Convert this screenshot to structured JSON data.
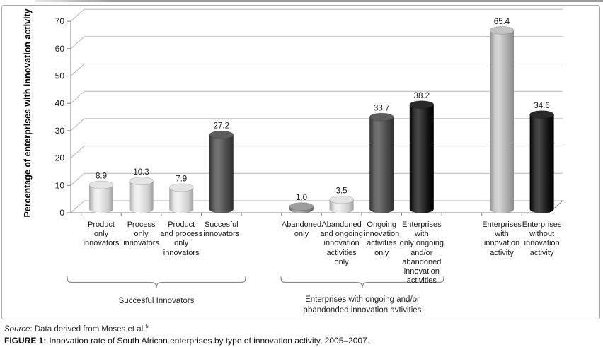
{
  "figure": {
    "y_axis_title": "Percentage of enterprises with innovation activity",
    "source_prefix": "Source",
    "source_text": ": Data derived from Moses et al.",
    "source_note_ref": "5",
    "caption_label": "FIGURE 1:",
    "caption_text": "Innovation rate of South African enterprises by type of innovation activity, 2005–2007."
  },
  "chart_data": {
    "type": "bar",
    "style": "3d-cylinder",
    "title": "",
    "xlabel": "",
    "ylabel": "Percentage of enterprises with innovation activity",
    "ylim": [
      0,
      70
    ],
    "yticks": [
      0,
      10,
      20,
      30,
      40,
      50,
      60,
      70
    ],
    "grid": true,
    "legend": "none",
    "bar_colors": {
      "light": "#d9d9d9",
      "dark": "#4f4f4f",
      "black": "#0f0f0f",
      "medium": "#8f8f8f",
      "medium_light": "#ababab"
    },
    "axis_color": "#808080",
    "gridline_color": "#b5b5b5",
    "groups": [
      {
        "brace_label": "Succesful Innovators",
        "brace_label_lines": [
          "Succesful Innovators"
        ],
        "bars": [
          {
            "label": "Product only innovators",
            "label_lines": [
              "Product",
              "only",
              "innovators"
            ],
            "value": 8.9,
            "color": "light"
          },
          {
            "label": "Process only innovators",
            "label_lines": [
              "Process",
              "only",
              "innovators"
            ],
            "value": 10.3,
            "color": "light"
          },
          {
            "label": "Product and process only innovators",
            "label_lines": [
              "Product",
              "and process",
              "only",
              "innovators"
            ],
            "value": 7.9,
            "color": "light"
          },
          {
            "label": "Succesful innovators",
            "label_lines": [
              "Succesful",
              "innovators"
            ],
            "value": 27.2,
            "color": "dark"
          }
        ]
      },
      {
        "brace_label": "Enterprises with ongoing and/or abandonded innovation avtivities",
        "brace_label_lines": [
          "Enterprises with ongoing and/or",
          "abandonded innovation avtivities"
        ],
        "bars": [
          {
            "label": "Abandoned only",
            "label_lines": [
              "Abandoned",
              "only"
            ],
            "value": 1.0,
            "color": "medium"
          },
          {
            "label": "Abandoned and ongoing innovation activities only",
            "label_lines": [
              "Abandoned",
              "and ongoing",
              "innovation",
              "activities",
              "only"
            ],
            "value": 3.5,
            "color": "light"
          },
          {
            "label": "Ongoing innovation activities only",
            "label_lines": [
              "Ongoing",
              "innovation",
              "activities",
              "only"
            ],
            "value": 33.7,
            "color": "dark"
          },
          {
            "label": "Enterprises with only ongoing and/or abandoned innovation activities",
            "label_lines": [
              "Enterprises",
              "with",
              "only ongoing",
              "and/or",
              "abandoned",
              "innovation",
              "activities"
            ],
            "value": 38.2,
            "color": "black"
          }
        ]
      },
      {
        "brace_label": null,
        "brace_label_lines": null,
        "bars": [
          {
            "label": "Enterprises with innovation activity",
            "label_lines": [
              "Enterprises",
              "with",
              "innovation",
              "activity"
            ],
            "value": 65.4,
            "color": "medium_light"
          },
          {
            "label": "Enterprises without innovation activity",
            "label_lines": [
              "Enterprises",
              "without",
              "innovation",
              "activity"
            ],
            "value": 34.6,
            "color": "black"
          }
        ]
      }
    ]
  }
}
